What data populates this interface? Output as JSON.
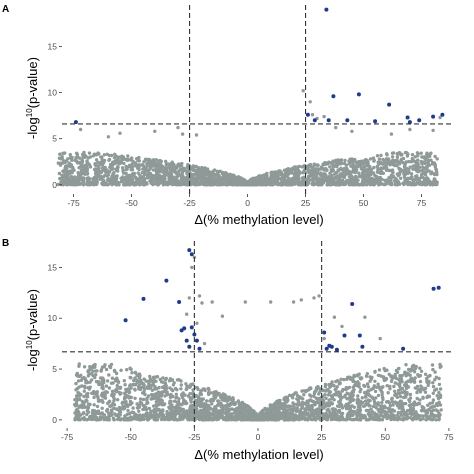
{
  "colors": {
    "background_point": "#8f9a98",
    "significant_point": "#1f3b8a",
    "threshold_line": "#333333",
    "axis": "#000000"
  },
  "chart_data": [
    {
      "panel_label": "A",
      "type": "scatter",
      "plot": "volcano",
      "xlabel": "Δ(% methylation level)",
      "ylabel": "-log",
      "ylabel_sup": "10",
      "ylabel_tail": "(p-value)",
      "xlim": [
        -80,
        89
      ],
      "ylim": [
        -1,
        19.5
      ],
      "xticks": [
        -75,
        -50,
        -25,
        0,
        25,
        50,
        75
      ],
      "yticks": [
        0,
        5,
        10,
        15
      ],
      "thresholds": {
        "x": [
          -25,
          25
        ],
        "y": 6.6
      },
      "grid": false,
      "legend": "none",
      "background_cloud": {
        "max_abs_delta": 82,
        "typical_peak": 3.5
      },
      "gray_outliers": [
        [
          -72,
          6.0
        ],
        [
          -60,
          5.2
        ],
        [
          -55,
          5.6
        ],
        [
          -40,
          5.8
        ],
        [
          -30,
          6.2
        ],
        [
          -28,
          5.5
        ],
        [
          -22,
          5.4
        ],
        [
          24,
          10.2
        ],
        [
          27,
          9.0
        ],
        [
          28,
          7.6
        ],
        [
          30,
          7.2
        ],
        [
          33,
          7.4
        ],
        [
          38,
          6.2
        ],
        [
          45,
          5.8
        ],
        [
          62,
          5.5
        ],
        [
          70,
          6.0
        ],
        [
          80,
          5.9
        ],
        [
          83,
          7.3
        ]
      ],
      "significant_points": [
        [
          -74,
          6.8
        ],
        [
          26,
          7.6
        ],
        [
          29,
          7.0
        ],
        [
          34,
          19.0
        ],
        [
          35,
          7.0
        ],
        [
          37,
          9.6
        ],
        [
          43,
          7.0
        ],
        [
          48,
          9.8
        ],
        [
          55,
          6.9
        ],
        [
          61,
          8.7
        ],
        [
          69,
          7.3
        ],
        [
          70,
          6.8
        ],
        [
          74,
          7.0
        ],
        [
          80,
          7.4
        ],
        [
          84,
          7.6
        ]
      ]
    },
    {
      "panel_label": "B",
      "type": "scatter",
      "plot": "volcano",
      "xlabel": "Δ(% methylation level)",
      "ylabel": "-log",
      "ylabel_sup": "10",
      "ylabel_tail": "(p-value)",
      "xlim": [
        -77,
        77
      ],
      "ylim": [
        -0.8,
        17.6
      ],
      "xticks": [
        -75,
        -50,
        -25,
        0,
        25,
        50,
        75
      ],
      "yticks": [
        0,
        5,
        10,
        15
      ],
      "thresholds": {
        "x": [
          -25,
          25
        ],
        "y": 6.7
      },
      "grid": false,
      "legend": "none",
      "background_cloud": {
        "max_abs_delta": 72,
        "typical_peak": 5.5
      },
      "gray_outliers": [
        [
          -72,
          1.5
        ],
        [
          -70,
          2.0
        ],
        [
          -55,
          1.0
        ],
        [
          -52,
          2.2
        ],
        [
          -45,
          2.0
        ],
        [
          -28,
          10.4
        ],
        [
          -27,
          12.0
        ],
        [
          -26,
          15.0
        ],
        [
          -25,
          16.0
        ],
        [
          -24,
          9.5
        ],
        [
          -23,
          12.2
        ],
        [
          -22,
          11.5
        ],
        [
          -21,
          7.5
        ],
        [
          -18,
          11.6
        ],
        [
          -14,
          10.2
        ],
        [
          -5,
          11.6
        ],
        [
          5,
          11.6
        ],
        [
          14,
          11.6
        ],
        [
          17,
          11.8
        ],
        [
          22,
          12.0
        ],
        [
          24,
          12.2
        ],
        [
          26,
          8.0
        ],
        [
          30,
          10.1
        ],
        [
          33,
          9.2
        ],
        [
          42,
          10.1
        ],
        [
          48,
          8.0
        ],
        [
          56,
          3.0
        ],
        [
          58,
          1.6
        ],
        [
          60,
          1.2
        ],
        [
          66,
          0.8
        ]
      ],
      "significant_points": [
        [
          -52,
          9.8
        ],
        [
          -45,
          11.9
        ],
        [
          -36,
          13.7
        ],
        [
          -31,
          11.6
        ],
        [
          -30,
          8.8
        ],
        [
          -29,
          9.0
        ],
        [
          -28,
          7.8
        ],
        [
          -27,
          16.7
        ],
        [
          -27,
          7.2
        ],
        [
          -26,
          16.3
        ],
        [
          -26,
          9.1
        ],
        [
          -25,
          8.4
        ],
        [
          -24,
          7.8
        ],
        [
          -23,
          7.0
        ],
        [
          26,
          8.6
        ],
        [
          27,
          7.0
        ],
        [
          28,
          7.3
        ],
        [
          29,
          7.2
        ],
        [
          31,
          6.9
        ],
        [
          34,
          8.3
        ],
        [
          37,
          11.4
        ],
        [
          40,
          8.3
        ],
        [
          41,
          7.2
        ],
        [
          57,
          7.0
        ],
        [
          69,
          12.9
        ],
        [
          71,
          13.0
        ]
      ]
    }
  ]
}
